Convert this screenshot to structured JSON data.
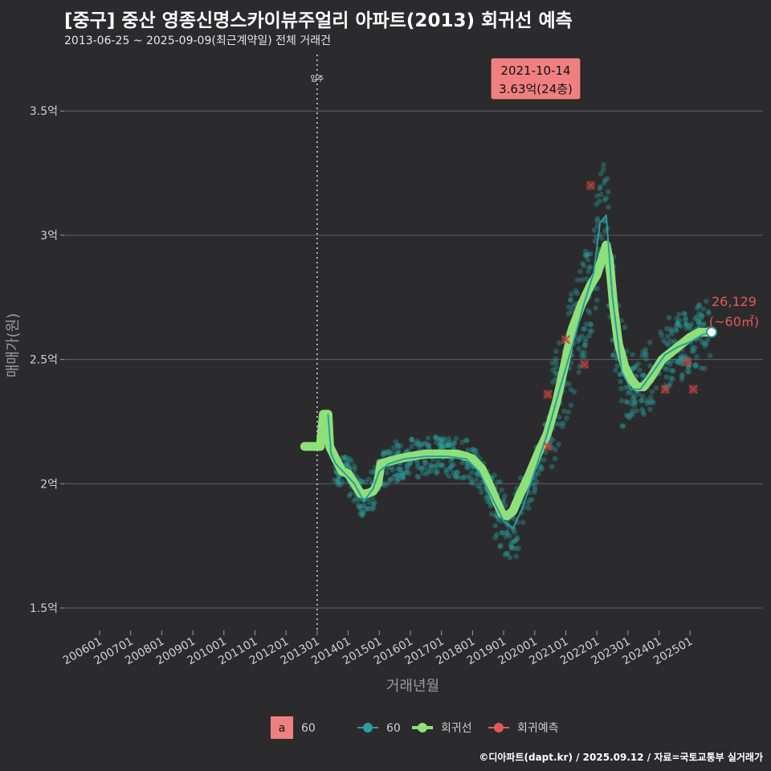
{
  "title": "[중구] 중산 영종신명스카이뷰주얼리 아파트(2013) 회귀선 예측",
  "subtitle": "2013-06-25 ~ 2025-09-09(최근계약일) 전체 거래건",
  "footer": "©디아파트(dapt.kr) / 2025.09.12 / 자료=국토교통부 실거래가",
  "colors": {
    "scatter": "#2a9d9c",
    "regression": "#8ee07a",
    "forecast": "#e05a5a",
    "highlight_box": "#f08080",
    "background": "#2b2b2d"
  },
  "chart_data": {
    "type": "scatter",
    "xlabel": "거래년월",
    "ylabel": "매매가(원)",
    "x_ticks": [
      "200601",
      "200701",
      "200801",
      "200901",
      "201001",
      "201101",
      "201201",
      "201301",
      "201401",
      "201501",
      "201601",
      "201701",
      "201801",
      "201901",
      "202001",
      "202101",
      "202201",
      "202301",
      "202401",
      "202501"
    ],
    "y_ticks": [
      "1.5억",
      "2억",
      "2.5억",
      "3억",
      "3.5억"
    ],
    "y_tick_values": [
      1.5,
      2.0,
      2.5,
      3.0,
      3.5
    ],
    "ylim": [
      1.4,
      3.75
    ],
    "xlim": [
      2005.5,
      2026.3
    ],
    "move_in_marker": {
      "x": 2013.0,
      "label": "입주"
    },
    "highlight": {
      "date": "2021-10-14",
      "price": "3.63억(24층)",
      "x": 2021.79,
      "y": 3.63
    },
    "end_label": {
      "line1": "26,129",
      "line2": "(~60㎡)",
      "x": 2025.69,
      "y": 2.61
    },
    "series": [
      {
        "name": "회귀선",
        "points": [
          [
            2012.6,
            2.15
          ],
          [
            2012.9,
            2.15
          ],
          [
            2013.1,
            2.15
          ],
          [
            2013.2,
            2.28
          ],
          [
            2013.35,
            2.28
          ],
          [
            2013.4,
            2.15
          ],
          [
            2013.6,
            2.1
          ],
          [
            2013.8,
            2.05
          ],
          [
            2014.0,
            2.04
          ],
          [
            2014.2,
            2.0
          ],
          [
            2014.4,
            1.96
          ],
          [
            2014.6,
            1.96
          ],
          [
            2014.8,
            1.97
          ],
          [
            2014.95,
            2.0
          ],
          [
            2015.05,
            2.08
          ],
          [
            2015.3,
            2.09
          ],
          [
            2015.6,
            2.1
          ],
          [
            2016.0,
            2.11
          ],
          [
            2016.5,
            2.12
          ],
          [
            2017.0,
            2.12
          ],
          [
            2017.5,
            2.12
          ],
          [
            2017.8,
            2.11
          ],
          [
            2018.0,
            2.1
          ],
          [
            2018.3,
            2.06
          ],
          [
            2018.6,
            1.98
          ],
          [
            2018.8,
            1.92
          ],
          [
            2018.95,
            1.88
          ],
          [
            2019.1,
            1.87
          ],
          [
            2019.3,
            1.89
          ],
          [
            2019.5,
            1.95
          ],
          [
            2019.8,
            2.03
          ],
          [
            2020.1,
            2.12
          ],
          [
            2020.4,
            2.2
          ],
          [
            2020.7,
            2.33
          ],
          [
            2021.0,
            2.5
          ],
          [
            2021.2,
            2.62
          ],
          [
            2021.5,
            2.72
          ],
          [
            2021.8,
            2.8
          ],
          [
            2022.0,
            2.84
          ],
          [
            2022.2,
            2.92
          ],
          [
            2022.3,
            2.96
          ],
          [
            2022.4,
            2.9
          ],
          [
            2022.55,
            2.7
          ],
          [
            2022.7,
            2.56
          ],
          [
            2022.9,
            2.47
          ],
          [
            2023.1,
            2.42
          ],
          [
            2023.3,
            2.39
          ],
          [
            2023.5,
            2.39
          ],
          [
            2023.7,
            2.42
          ],
          [
            2023.9,
            2.46
          ],
          [
            2024.1,
            2.5
          ],
          [
            2024.4,
            2.53
          ],
          [
            2024.7,
            2.56
          ],
          [
            2025.0,
            2.59
          ],
          [
            2025.3,
            2.61
          ],
          [
            2025.5,
            2.61
          ],
          [
            2025.69,
            2.61
          ]
        ]
      },
      {
        "name": "60",
        "points": [
          [
            2013.35,
            2.28
          ],
          [
            2013.45,
            2.12
          ],
          [
            2013.6,
            2.08
          ],
          [
            2013.9,
            2.04
          ],
          [
            2014.2,
            2.0
          ],
          [
            2014.5,
            1.93
          ],
          [
            2014.8,
            1.98
          ],
          [
            2015.0,
            2.05
          ],
          [
            2015.3,
            2.08
          ],
          [
            2015.8,
            2.1
          ],
          [
            2016.5,
            2.11
          ],
          [
            2017.2,
            2.11
          ],
          [
            2017.8,
            2.1
          ],
          [
            2018.2,
            2.05
          ],
          [
            2018.6,
            1.95
          ],
          [
            2019.0,
            1.85
          ],
          [
            2019.3,
            1.82
          ],
          [
            2019.6,
            1.9
          ],
          [
            2020.0,
            2.05
          ],
          [
            2020.4,
            2.2
          ],
          [
            2020.8,
            2.38
          ],
          [
            2021.2,
            2.55
          ],
          [
            2021.6,
            2.73
          ],
          [
            2021.9,
            2.85
          ],
          [
            2022.1,
            3.05
          ],
          [
            2022.3,
            3.08
          ],
          [
            2022.5,
            2.75
          ],
          [
            2022.8,
            2.45
          ],
          [
            2023.1,
            2.38
          ],
          [
            2023.4,
            2.38
          ],
          [
            2023.8,
            2.45
          ],
          [
            2024.2,
            2.52
          ],
          [
            2024.6,
            2.55
          ],
          [
            2025.0,
            2.57
          ],
          [
            2025.4,
            2.6
          ],
          [
            2025.69,
            2.61
          ]
        ]
      }
    ],
    "forecast_points": [
      [
        2020.42,
        2.36
      ],
      [
        2020.42,
        2.15
      ],
      [
        2021.0,
        2.58
      ],
      [
        2021.6,
        2.48
      ],
      [
        2021.8,
        3.2
      ],
      [
        2024.2,
        2.38
      ],
      [
        2024.9,
        2.49
      ],
      [
        2025.1,
        2.38
      ]
    ],
    "legend": [
      {
        "label": "60",
        "kind": "box",
        "box_text": "a"
      },
      {
        "label": "60",
        "kind": "scatter"
      },
      {
        "label": "회귀선",
        "kind": "line"
      },
      {
        "label": "회귀예측",
        "kind": "forecast"
      }
    ]
  }
}
